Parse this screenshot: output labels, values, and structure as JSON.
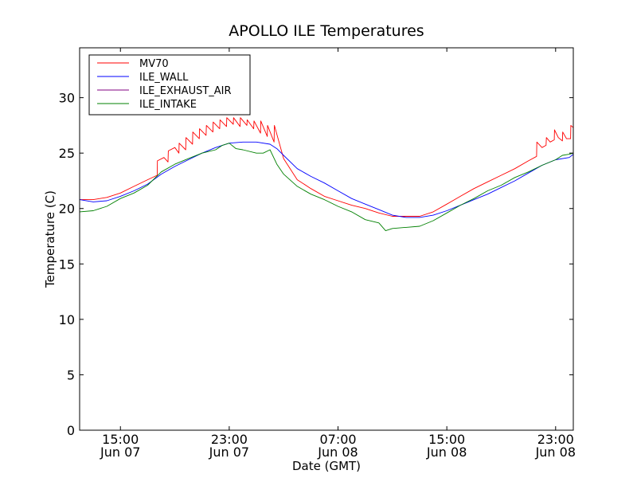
{
  "chart_data": {
    "type": "line",
    "title": "APOLLO ILE Temperatures",
    "xlabel": "Date (GMT)",
    "ylabel": "Temperature (C)",
    "xlim": [
      12.0,
      48.3
    ],
    "ylim": [
      0,
      34.5
    ],
    "x_unit": "hours since 2013-06-07 00:00 GMT",
    "grid": false,
    "legend_position": "top-left",
    "y_ticks": [
      {
        "value": 0,
        "label": "0"
      },
      {
        "value": 5,
        "label": "5"
      },
      {
        "value": 10,
        "label": "10"
      },
      {
        "value": 15,
        "label": "15"
      },
      {
        "value": 20,
        "label": "20"
      },
      {
        "value": 25,
        "label": "25"
      },
      {
        "value": 30,
        "label": "30"
      }
    ],
    "x_ticks": [
      {
        "value": 15,
        "label_time": "15:00",
        "label_date": "Jun 07"
      },
      {
        "value": 23,
        "label_time": "23:00",
        "label_date": "Jun 07"
      },
      {
        "value": 31,
        "label_time": "07:00",
        "label_date": "Jun 08"
      },
      {
        "value": 39,
        "label_time": "15:00",
        "label_date": "Jun 08"
      },
      {
        "value": 47,
        "label_time": "23:00",
        "label_date": "Jun 08"
      }
    ],
    "series": [
      {
        "name": "MV70",
        "color": "#ff0000",
        "x": [
          12.0,
          13.0,
          14.0,
          15.0,
          16.0,
          17.0,
          17.7,
          17.72,
          18.2,
          18.5,
          18.52,
          19.0,
          19.3,
          19.32,
          19.8,
          19.82,
          20.3,
          20.32,
          20.8,
          20.82,
          21.3,
          21.32,
          21.8,
          21.82,
          22.3,
          22.32,
          22.8,
          22.82,
          23.3,
          23.32,
          23.8,
          23.82,
          24.3,
          24.32,
          24.8,
          24.82,
          25.3,
          25.32,
          25.8,
          25.82,
          26.3,
          26.32,
          27.0,
          28.0,
          29.0,
          30.0,
          31.0,
          32.0,
          33.0,
          34.0,
          35.0,
          36.0,
          37.0,
          38.0,
          39.0,
          40.0,
          41.0,
          42.0,
          43.0,
          44.0,
          45.0,
          45.6,
          45.62,
          46.0,
          46.3,
          46.32,
          46.6,
          46.9,
          46.92,
          47.2,
          47.5,
          47.52,
          47.8,
          48.1,
          48.12,
          48.3
        ],
        "y": [
          20.8,
          20.8,
          21.0,
          21.4,
          22.0,
          22.6,
          23.0,
          24.3,
          24.6,
          24.2,
          25.2,
          25.5,
          25.0,
          25.9,
          25.3,
          26.4,
          25.8,
          26.9,
          26.3,
          27.2,
          26.6,
          27.5,
          26.9,
          27.8,
          27.2,
          28.0,
          27.4,
          28.2,
          27.6,
          28.2,
          27.4,
          28.2,
          27.5,
          28.0,
          27.2,
          27.9,
          26.8,
          27.9,
          26.5,
          27.5,
          26.0,
          27.5,
          24.5,
          22.6,
          21.8,
          21.1,
          20.7,
          20.3,
          20.0,
          19.6,
          19.3,
          19.3,
          19.3,
          19.7,
          20.4,
          21.1,
          21.8,
          22.4,
          23.0,
          23.6,
          24.3,
          24.7,
          26.0,
          25.5,
          25.7,
          26.4,
          26.0,
          26.2,
          27.1,
          26.4,
          26.1,
          26.9,
          26.3,
          26.3,
          27.5,
          27.3
        ]
      },
      {
        "name": "ILE_WALL",
        "color": "#0000ff",
        "x": [
          12.0,
          13.0,
          14.0,
          15.0,
          16.0,
          17.0,
          18.0,
          19.0,
          20.0,
          21.0,
          22.0,
          23.0,
          24.0,
          25.0,
          26.0,
          26.5,
          27.0,
          28.0,
          29.0,
          30.0,
          31.0,
          32.0,
          33.0,
          34.0,
          35.0,
          36.0,
          37.0,
          38.0,
          39.0,
          40.0,
          41.0,
          42.0,
          43.0,
          44.0,
          45.0,
          46.0,
          47.0,
          48.0,
          48.3
        ],
        "y": [
          20.8,
          20.6,
          20.7,
          21.1,
          21.6,
          22.2,
          23.1,
          23.8,
          24.4,
          25.0,
          25.5,
          25.9,
          26.0,
          26.0,
          25.8,
          25.4,
          24.8,
          23.6,
          22.9,
          22.3,
          21.6,
          20.9,
          20.4,
          19.9,
          19.4,
          19.2,
          19.2,
          19.4,
          19.8,
          20.3,
          20.8,
          21.3,
          21.9,
          22.5,
          23.2,
          23.9,
          24.4,
          24.6,
          24.9
        ]
      },
      {
        "name": "ILE_EXHAUST_AIR",
        "color": "#800080",
        "x": [],
        "y": []
      },
      {
        "name": "ILE_INTAKE",
        "color": "#008000",
        "x": [
          12.0,
          13.0,
          14.0,
          15.0,
          16.0,
          17.0,
          18.0,
          19.0,
          20.0,
          21.0,
          22.0,
          22.5,
          23.0,
          23.5,
          24.0,
          25.0,
          25.5,
          26.0,
          26.5,
          27.0,
          28.0,
          29.0,
          30.0,
          31.0,
          32.0,
          33.0,
          34.0,
          34.5,
          35.0,
          36.0,
          37.0,
          38.0,
          39.0,
          40.0,
          41.0,
          42.0,
          43.0,
          44.0,
          45.0,
          46.0,
          47.0,
          47.5,
          48.0,
          48.3
        ],
        "y": [
          19.7,
          19.8,
          20.2,
          20.9,
          21.4,
          22.1,
          23.3,
          24.0,
          24.5,
          25.0,
          25.3,
          25.7,
          25.9,
          25.4,
          25.3,
          25.0,
          25.0,
          25.3,
          24.0,
          23.1,
          22.0,
          21.3,
          20.8,
          20.2,
          19.7,
          19.0,
          18.7,
          18.0,
          18.2,
          18.3,
          18.4,
          18.9,
          19.6,
          20.3,
          20.9,
          21.6,
          22.1,
          22.8,
          23.3,
          23.9,
          24.4,
          24.8,
          24.9,
          25.0
        ]
      }
    ]
  }
}
